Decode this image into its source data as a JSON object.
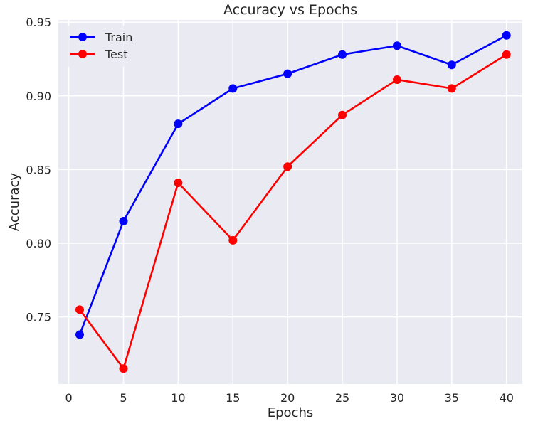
{
  "chart_data": {
    "type": "line",
    "title": "Accuracy vs Epochs",
    "xlabel": "Epochs",
    "ylabel": "Accuracy",
    "x": [
      1,
      5,
      10,
      15,
      20,
      25,
      30,
      35,
      40
    ],
    "xlim": [
      -0.95,
      41.45
    ],
    "ylim": [
      0.7045,
      0.9515
    ],
    "xticks": [
      0,
      5,
      10,
      15,
      20,
      25,
      30,
      35,
      40
    ],
    "yticks": [
      0.75,
      0.8,
      0.85,
      0.9,
      0.95
    ],
    "xtick_labels": [
      "0",
      "5",
      "10",
      "15",
      "20",
      "25",
      "30",
      "35",
      "40"
    ],
    "ytick_labels": [
      "0.75",
      "0.80",
      "0.85",
      "0.90",
      "0.95"
    ],
    "grid": true,
    "legend_position": "top-left",
    "series": [
      {
        "name": "Train",
        "color": "#0000ff",
        "marker": "circle",
        "values": [
          0.738,
          0.815,
          0.881,
          0.905,
          0.915,
          0.928,
          0.934,
          0.921,
          0.941
        ]
      },
      {
        "name": "Test",
        "color": "#ff0000",
        "marker": "circle",
        "values": [
          0.755,
          0.715,
          0.841,
          0.802,
          0.852,
          0.887,
          0.911,
          0.905,
          0.928
        ]
      }
    ],
    "colors": {
      "plot_background": "#eaeaf2",
      "grid": "#ffffff",
      "text": "#262626"
    }
  }
}
